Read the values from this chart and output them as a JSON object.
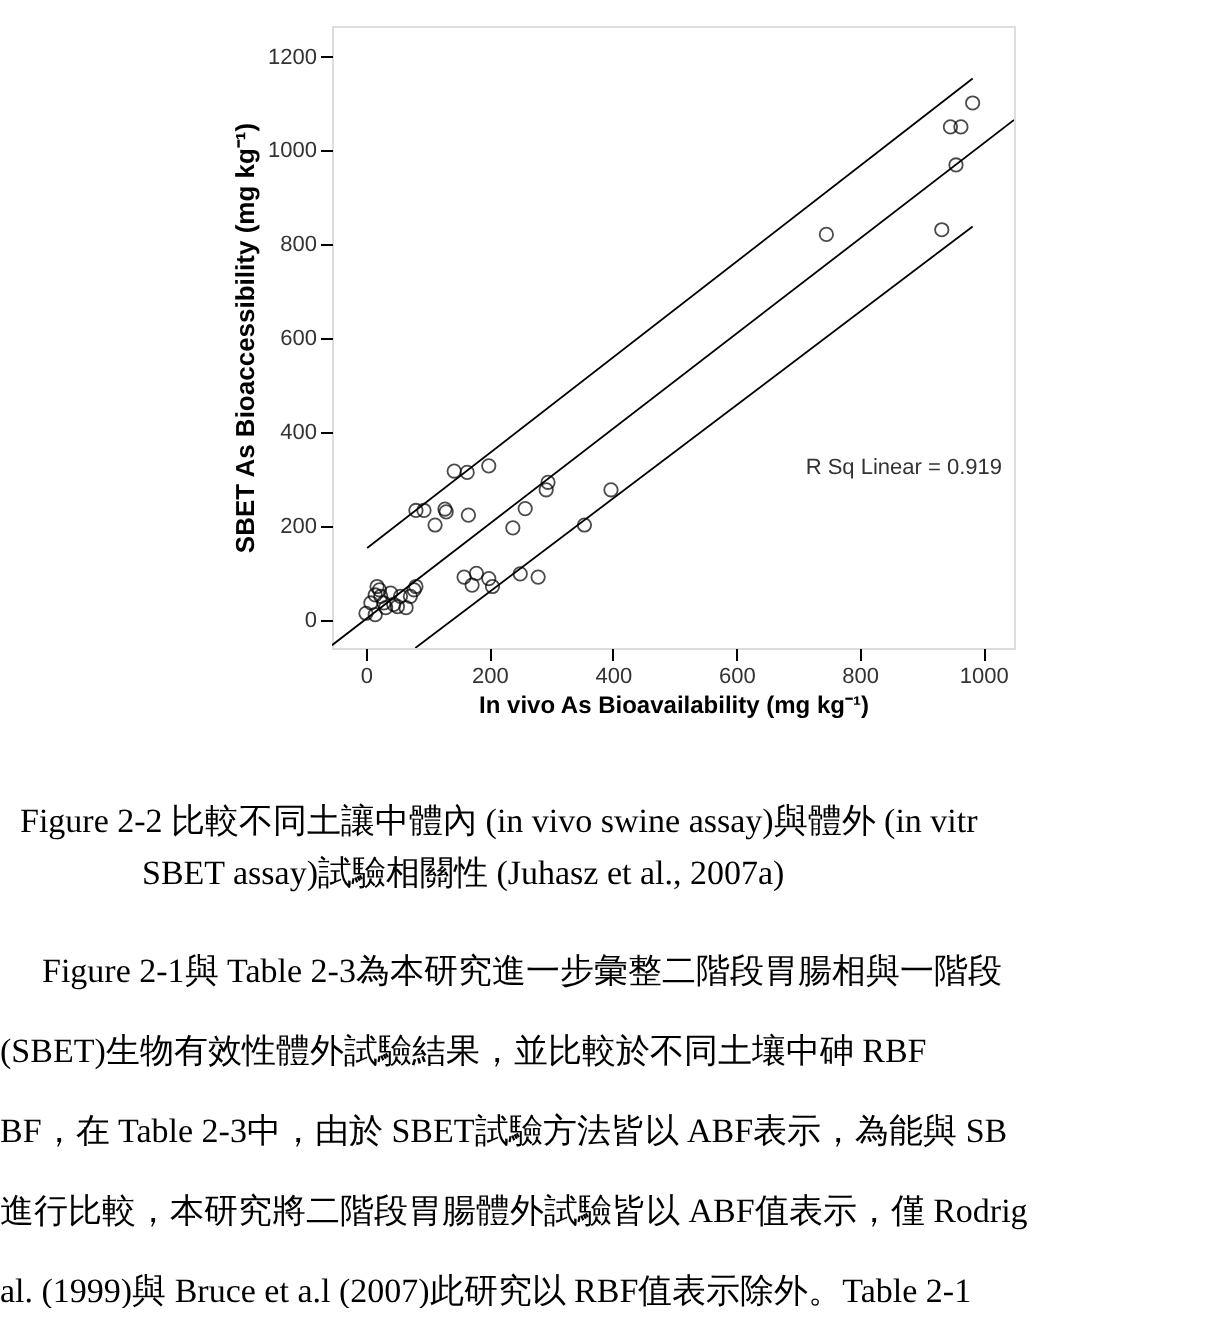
{
  "chart_data": {
    "type": "scatter",
    "xlabel": "In vivo As Bioavailability (mg kg⁻¹)",
    "ylabel": "SBET As Bioaccessibility (mg kg⁻¹)",
    "xlim": [
      -55,
      1050
    ],
    "ylim": [
      -60,
      1265
    ],
    "xticks": [
      0,
      200,
      400,
      600,
      800,
      1000
    ],
    "yticks": [
      0,
      200,
      400,
      600,
      800,
      1000,
      1200
    ],
    "grid": false,
    "series": [
      {
        "marker": "circle",
        "color": "#000000",
        "x": [
          983,
          947,
          964,
          956,
          933,
          746,
          397,
          354,
          295,
          292,
          258,
          238,
          199,
          164,
          143,
          166,
          128,
          130,
          112,
          94,
          81,
          159,
          179,
          172,
          199,
          205,
          250,
          279,
          0,
          15,
          8,
          18,
          22,
          24,
          15,
          29,
          40,
          45,
          56,
          65,
          72,
          78,
          81,
          32,
          51
        ],
        "values": [
          1101,
          1050,
          1050,
          969,
          831,
          821,
          277,
          202,
          293,
          277,
          237,
          196,
          328,
          314,
          317,
          223,
          236,
          230,
          202,
          233,
          233,
          91,
          99,
          74,
          88,
          71,
          98,
          91,
          14,
          11,
          36,
          71,
          64,
          50,
          53,
          36,
          57,
          33,
          50,
          26,
          50,
          64,
          71,
          26,
          28
        ]
      },
      {
        "type": "line",
        "marker": "none",
        "line_style": "solid",
        "color": "#000000",
        "x": [
          -55,
          1050
        ],
        "values": [
          -54,
          1065
        ]
      },
      {
        "type": "line",
        "marker": "none",
        "line_style": "solid",
        "color": "#000000",
        "x": [
          2,
          983
        ],
        "values": [
          153,
          1153
        ]
      },
      {
        "type": "line",
        "marker": "none",
        "line_style": "solid",
        "color": "#000000",
        "x": [
          80,
          983
        ],
        "values": [
          -60,
          838
        ]
      }
    ],
    "annotations": [
      "R Sq Linear = 0.919",
      "Figure 2-2  比較不同土讓中體內  (in vivo swine assay)與體外  (in vitr",
      "SBET assay)試驗相關性  (Juhasz et al., 2007a)",
      "Figure 2-1與 Table 2-3為本研究進一步彙整二階段胃腸相與一階段",
      "(SBET)生物有效性體外試驗結果，並比較於不同土壤中砷  RBF",
      "BF，在 Table 2-3中，由於 SBET試驗方法皆以 ABF表示，為能與 SB",
      "進行比較，本研究將二階段胃腸體外試驗皆以 ABF值表示，僅 Rodrig",
      "al. (1999)與 Bruce et a.l (2007)此研究以 RBF值表示除外。Table 2-1"
    ]
  }
}
